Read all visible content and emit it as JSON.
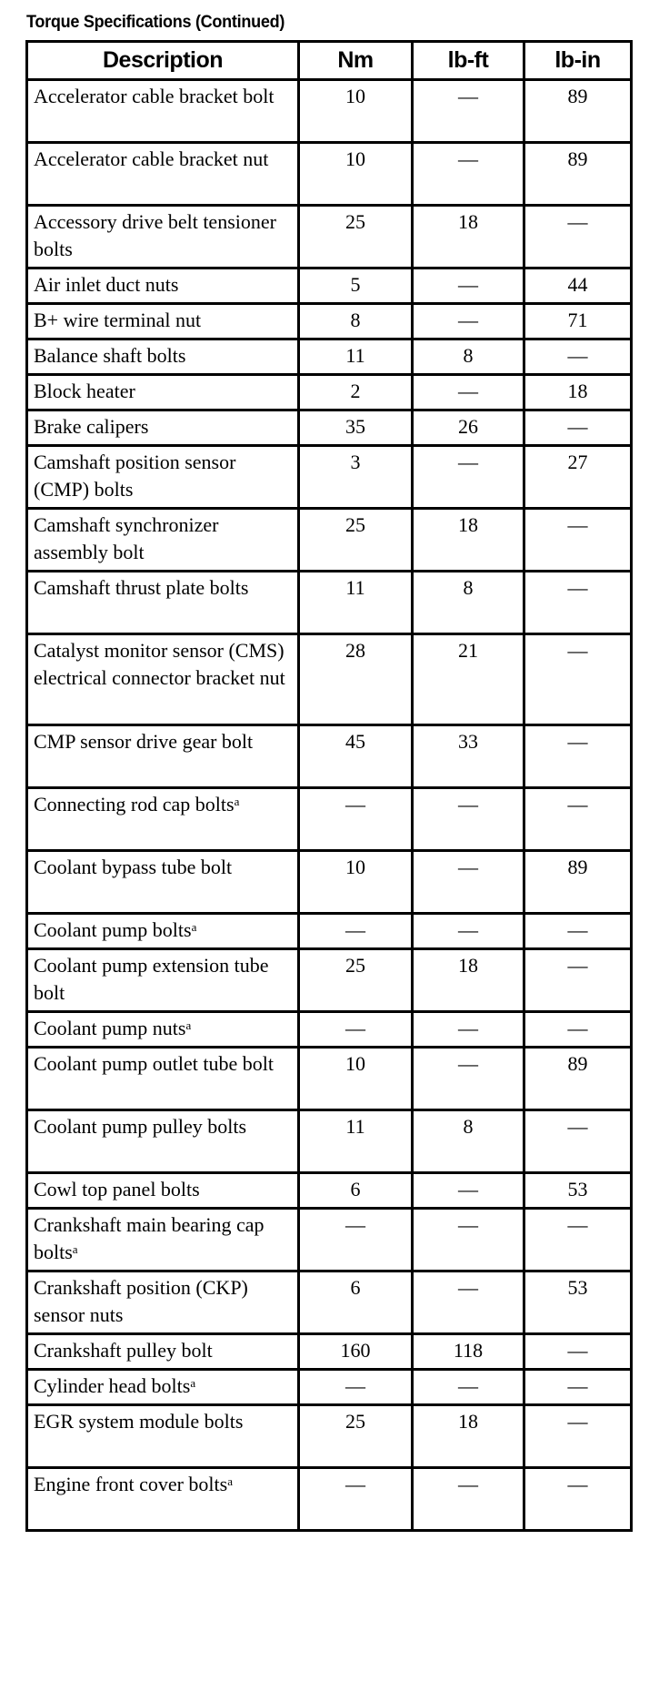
{
  "title": "Torque Specifications (Continued)",
  "headers": [
    "Description",
    "Nm",
    "lb-ft",
    "lb-in"
  ],
  "rows": [
    {
      "desc": "Accelerator cable bracket bolt",
      "note": "",
      "lines": 2,
      "nm": "10",
      "lbft": "—",
      "lbin": "89"
    },
    {
      "desc": "Accelerator cable bracket nut",
      "note": "",
      "lines": 2,
      "nm": "10",
      "lbft": "—",
      "lbin": "89"
    },
    {
      "desc": "Accessory drive belt tensioner bolts",
      "note": "",
      "lines": 2,
      "nm": "25",
      "lbft": "18",
      "lbin": "—"
    },
    {
      "desc": "Air inlet duct nuts",
      "note": "",
      "lines": 1,
      "nm": "5",
      "lbft": "—",
      "lbin": "44"
    },
    {
      "desc": "B+ wire terminal nut",
      "note": "",
      "lines": 1,
      "nm": "8",
      "lbft": "—",
      "lbin": "71"
    },
    {
      "desc": "Balance shaft bolts",
      "note": "",
      "lines": 1,
      "nm": "11",
      "lbft": "8",
      "lbin": "—"
    },
    {
      "desc": "Block heater",
      "note": "",
      "lines": 1,
      "nm": "2",
      "lbft": "—",
      "lbin": "18"
    },
    {
      "desc": "Brake calipers",
      "note": "",
      "lines": 1,
      "nm": "35",
      "lbft": "26",
      "lbin": "—"
    },
    {
      "desc": "Camshaft position sensor (CMP) bolts",
      "note": "",
      "lines": 2,
      "nm": "3",
      "lbft": "—",
      "lbin": "27"
    },
    {
      "desc": "Camshaft synchronizer assembly bolt",
      "note": "",
      "lines": 2,
      "nm": "25",
      "lbft": "18",
      "lbin": "—"
    },
    {
      "desc": "Camshaft thrust plate bolts",
      "note": "",
      "lines": 2,
      "nm": "11",
      "lbft": "8",
      "lbin": "—"
    },
    {
      "desc": "Catalyst monitor sensor (CMS) electrical connector bracket nut",
      "note": "",
      "lines": 3,
      "nm": "28",
      "lbft": "21",
      "lbin": "—"
    },
    {
      "desc": "CMP sensor drive gear bolt",
      "note": "",
      "lines": 2,
      "nm": "45",
      "lbft": "33",
      "lbin": "—"
    },
    {
      "desc": "Connecting rod cap bolts",
      "note": "a",
      "lines": 2,
      "nm": "—",
      "lbft": "—",
      "lbin": "—"
    },
    {
      "desc": "Coolant bypass tube bolt",
      "note": "",
      "lines": 2,
      "nm": "10",
      "lbft": "—",
      "lbin": "89"
    },
    {
      "desc": "Coolant pump bolts",
      "note": "a",
      "lines": 1,
      "nm": "—",
      "lbft": "—",
      "lbin": "—"
    },
    {
      "desc": "Coolant pump extension tube bolt",
      "note": "",
      "lines": 2,
      "nm": "25",
      "lbft": "18",
      "lbin": "—"
    },
    {
      "desc": "Coolant pump nuts",
      "note": "a",
      "lines": 1,
      "nm": "—",
      "lbft": "—",
      "lbin": "—"
    },
    {
      "desc": "Coolant pump outlet tube bolt",
      "note": "",
      "lines": 2,
      "nm": "10",
      "lbft": "—",
      "lbin": "89"
    },
    {
      "desc": "Coolant pump pulley bolts",
      "note": "",
      "lines": 2,
      "nm": "11",
      "lbft": "8",
      "lbin": "—"
    },
    {
      "desc": "Cowl top panel bolts",
      "note": "",
      "lines": 1,
      "nm": "6",
      "lbft": "—",
      "lbin": "53"
    },
    {
      "desc": "Crankshaft main bearing cap bolts",
      "note": "a",
      "lines": 2,
      "nm": "—",
      "lbft": "—",
      "lbin": "—"
    },
    {
      "desc": "Crankshaft position (CKP) sensor nuts",
      "note": "",
      "lines": 2,
      "nm": "6",
      "lbft": "—",
      "lbin": "53"
    },
    {
      "desc": "Crankshaft pulley bolt",
      "note": "",
      "lines": 1,
      "nm": "160",
      "lbft": "118",
      "lbin": "—"
    },
    {
      "desc": "Cylinder head bolts",
      "note": "a",
      "lines": 1,
      "nm": "—",
      "lbft": "—",
      "lbin": "—"
    },
    {
      "desc": "EGR system module bolts",
      "note": "",
      "lines": 2,
      "nm": "25",
      "lbft": "18",
      "lbin": "—"
    },
    {
      "desc": "Engine front cover bolts",
      "note": "a",
      "lines": 2,
      "nm": "—",
      "lbft": "—",
      "lbin": "—"
    }
  ]
}
